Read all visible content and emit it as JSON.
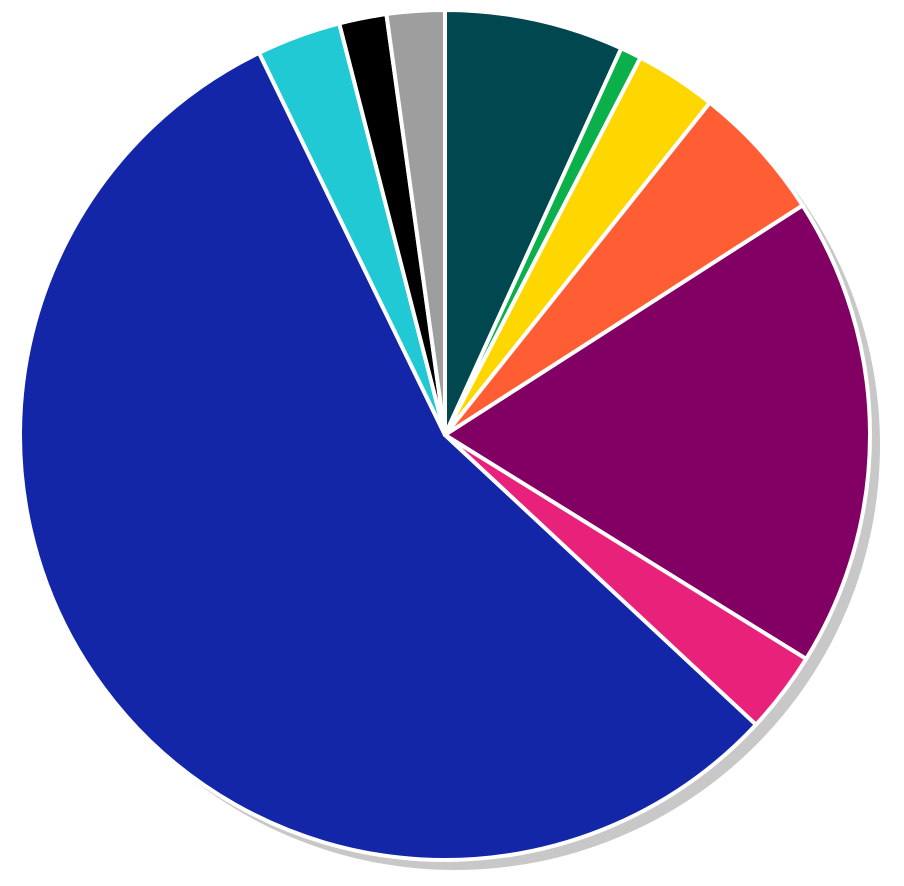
{
  "chart_data": {
    "type": "pie",
    "values": [
      6.8,
      0.8,
      3.1,
      5.2,
      17.9,
      3.1,
      55.8,
      3.2,
      1.8,
      2.2
    ],
    "colors": [
      "#01474f",
      "#0bb04a",
      "#ffd700",
      "#ff5e35",
      "#820063",
      "#e8227a",
      "#1226a7",
      "#20c9d3",
      "#000000",
      "#9e9e9e"
    ],
    "start_angle": 90,
    "direction": "clockwise",
    "shadow": true
  }
}
